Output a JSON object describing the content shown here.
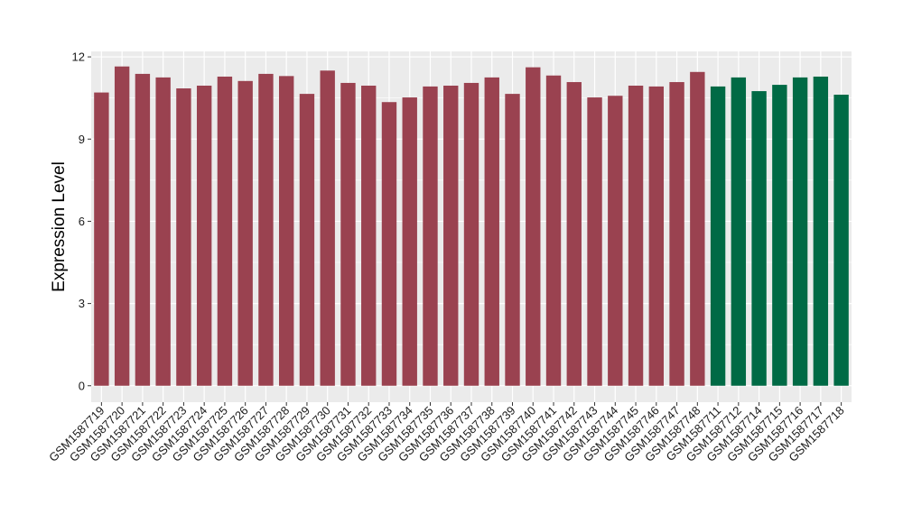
{
  "chart_data": {
    "type": "bar",
    "title": "",
    "xlabel": "",
    "ylabel": "Expression Level",
    "ylim": [
      -0.6,
      12.2
    ],
    "yticks": [
      0,
      3,
      6,
      9,
      12
    ],
    "grid": true,
    "colors": {
      "group_a": "#9a4250",
      "group_b": "#006a45",
      "panel_bg": "#ebebeb",
      "grid": "#ffffff"
    },
    "categories": [
      "GSM1587719",
      "GSM1587720",
      "GSM1587721",
      "GSM1587722",
      "GSM1587723",
      "GSM1587724",
      "GSM1587725",
      "GSM1587726",
      "GSM1587727",
      "GSM1587728",
      "GSM1587729",
      "GSM1587730",
      "GSM1587731",
      "GSM1587732",
      "GSM1587733",
      "GSM1587734",
      "GSM1587735",
      "GSM1587736",
      "GSM1587737",
      "GSM1587738",
      "GSM1587739",
      "GSM1587740",
      "GSM1587741",
      "GSM1587742",
      "GSM1587743",
      "GSM1587744",
      "GSM1587745",
      "GSM1587746",
      "GSM1587747",
      "GSM1587748",
      "GSM1587711",
      "GSM1587712",
      "GSM1587714",
      "GSM1587715",
      "GSM1587716",
      "GSM1587717",
      "GSM1587718"
    ],
    "values": [
      10.7,
      11.65,
      11.38,
      11.25,
      10.85,
      10.95,
      11.28,
      11.12,
      11.38,
      11.3,
      10.65,
      11.5,
      11.05,
      10.95,
      10.35,
      10.52,
      10.92,
      10.95,
      11.05,
      11.25,
      10.65,
      11.62,
      11.32,
      11.08,
      10.52,
      10.58,
      10.95,
      10.92,
      11.08,
      11.45,
      10.92,
      11.25,
      10.75,
      10.98,
      11.25,
      11.28,
      10.62
    ],
    "groups": [
      "a",
      "a",
      "a",
      "a",
      "a",
      "a",
      "a",
      "a",
      "a",
      "a",
      "a",
      "a",
      "a",
      "a",
      "a",
      "a",
      "a",
      "a",
      "a",
      "a",
      "a",
      "a",
      "a",
      "a",
      "a",
      "a",
      "a",
      "a",
      "a",
      "a",
      "b",
      "b",
      "b",
      "b",
      "b",
      "b",
      "b"
    ]
  }
}
